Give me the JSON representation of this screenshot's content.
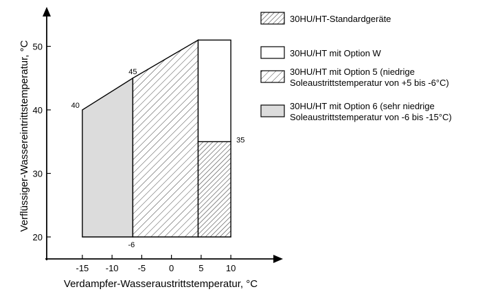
{
  "chart_data": {
    "type": "area",
    "xlabel": "Verdampfer-Wasseraustrittstemperatur, °C",
    "ylabel": "Verflüssiger-Wassereintrittstemperatur, °C",
    "xlim": [
      -21,
      16
    ],
    "ylim": [
      16,
      56
    ],
    "x_ticks": [
      -15,
      -10,
      -5,
      0,
      5,
      10
    ],
    "y_ticks": [
      20,
      30,
      40,
      50
    ],
    "grid": false,
    "legend_position": "right",
    "colors": {
      "option6_fill": "#dcdcdc",
      "outline": "#000000",
      "hatch": "#444444",
      "white": "#ffffff"
    },
    "regions": [
      {
        "key": "option6",
        "style": "gray",
        "polygon": [
          [
            -15,
            20
          ],
          [
            -6.5,
            20
          ],
          [
            -6.5,
            45
          ],
          [
            -15,
            40
          ]
        ]
      },
      {
        "key": "option5",
        "style": "hatch-wide",
        "polygon": [
          [
            -6.5,
            20
          ],
          [
            4.5,
            20
          ],
          [
            4.5,
            51
          ],
          [
            -6.5,
            45
          ]
        ]
      },
      {
        "key": "standard",
        "style": "hatch-narrow",
        "polygon": [
          [
            4.5,
            20
          ],
          [
            10,
            20
          ],
          [
            10,
            35
          ],
          [
            4.5,
            35
          ]
        ]
      },
      {
        "key": "optionW",
        "style": "white",
        "polygon": [
          [
            4.5,
            35
          ],
          [
            10,
            35
          ],
          [
            10,
            51
          ],
          [
            4.5,
            51
          ]
        ]
      }
    ],
    "annotations": [
      {
        "text": "40",
        "x": -15,
        "y": 40,
        "anchor": "left"
      },
      {
        "text": "45",
        "x": -6.5,
        "y": 45,
        "anchor": "above"
      },
      {
        "text": "-6",
        "x": -6.5,
        "y": 20,
        "anchor": "below"
      },
      {
        "text": "35",
        "x": 10,
        "y": 35,
        "anchor": "right"
      }
    ],
    "legend": [
      {
        "style": "hatch-narrow",
        "lines": [
          "30HU/HT-Standardgeräte"
        ]
      },
      {
        "style": "white",
        "lines": [
          "30HU/HT mit Option W"
        ]
      },
      {
        "style": "hatch-wide",
        "lines": [
          "30HU/HT mit Option 5 (niedrige",
          "Soleaustrittstemperatur von +5 bis -6°C)"
        ]
      },
      {
        "style": "gray",
        "lines": [
          "30HU/HT mit Option 6 (sehr niedrige",
          "Soleaustrittstemperatur von -6 bis -15°C)"
        ]
      }
    ]
  }
}
